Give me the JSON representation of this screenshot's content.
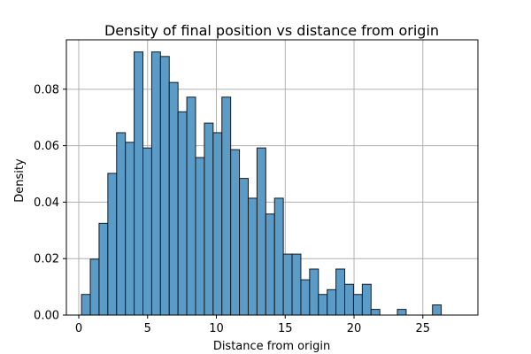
{
  "chart_data": {
    "type": "bar",
    "title": "Density of final position vs distance from origin",
    "xlabel": "Distance from origin",
    "ylabel": "Density",
    "xlim": [
      -0.9,
      29.0
    ],
    "ylim": [
      0,
      0.0975
    ],
    "xticks": [
      0,
      5,
      10,
      15,
      20,
      25
    ],
    "xtick_labels": [
      "0",
      "5",
      "10",
      "15",
      "20",
      "25"
    ],
    "yticks": [
      0.0,
      0.02,
      0.04,
      0.06,
      0.08
    ],
    "ytick_labels": [
      "0.00",
      "0.02",
      "0.04",
      "0.06",
      "0.08"
    ],
    "grid": true,
    "bar_color": "#5b9bc8",
    "bar_edge_color": "#1a1a1a",
    "bins": {
      "start": 0.2,
      "width": 0.6375,
      "values": [
        0.0073,
        0.0198,
        0.0325,
        0.0502,
        0.0646,
        0.0612,
        0.0932,
        0.0592,
        0.0932,
        0.0916,
        0.0824,
        0.072,
        0.0772,
        0.0558,
        0.068,
        0.0646,
        0.0772,
        0.0586,
        0.0484,
        0.0414,
        0.0592,
        0.0358,
        0.0414,
        0.0216,
        0.0216,
        0.0125,
        0.0163,
        0.0073,
        0.009,
        0.0163,
        0.0109,
        0.0073,
        0.0109,
        0.002,
        0.0,
        0.0,
        0.002,
        0.0,
        0.0,
        0.0,
        0.0036
      ]
    }
  }
}
